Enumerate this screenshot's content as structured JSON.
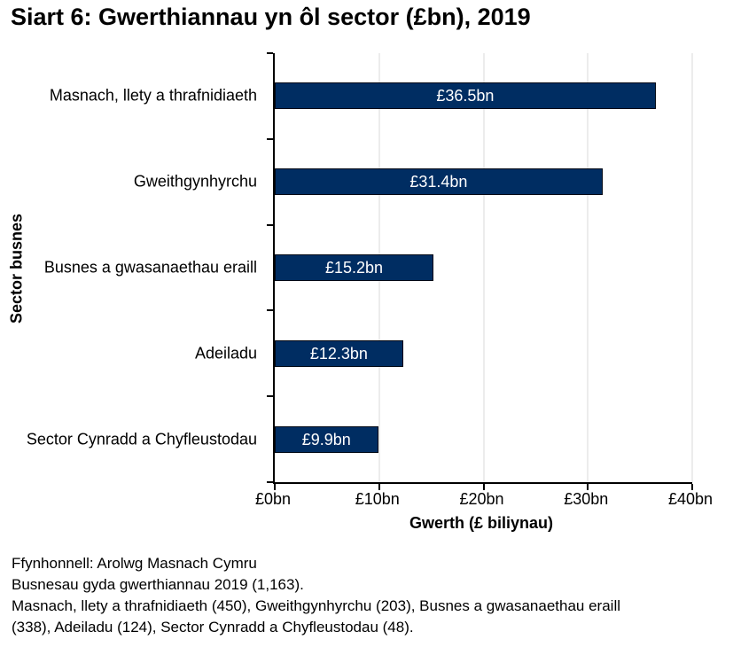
{
  "title": "Siart 6: Gwerthiannau yn ôl sector (£bn), 2019",
  "chart_data": {
    "type": "bar",
    "orientation": "horizontal",
    "title": "Siart 6: Gwerthiannau yn ôl sector (£bn), 2019",
    "categories": [
      "Masnach, llety a thrafnidiaeth",
      "Gweithgynhyrchu",
      "Busnes a gwasanaethau eraill",
      "Adeiladu",
      "Sector Cynradd a Chyfleustodau"
    ],
    "values": [
      36.5,
      31.4,
      15.2,
      12.3,
      9.9
    ],
    "bar_labels": [
      "£36.5bn",
      "£31.4bn",
      "£15.2bn",
      "£12.3bn",
      "£9.9bn"
    ],
    "xlabel": "Gwerth (£ biliynau)",
    "ylabel": "Sector busnes",
    "xlim": [
      0,
      40
    ],
    "xticks": [
      {
        "value": 0,
        "label": "£0bn"
      },
      {
        "value": 10,
        "label": "£10bn"
      },
      {
        "value": 20,
        "label": "£20bn"
      },
      {
        "value": 30,
        "label": "£30bn"
      },
      {
        "value": 40,
        "label": "£40bn"
      }
    ],
    "grid": true,
    "legend_position": "none",
    "colors": {
      "bar_fill": "#002d62",
      "bar_border": "#000814",
      "gridline": "#d9d9d9",
      "axis": "#000000",
      "bar_label_text": "#ffffff"
    }
  },
  "footer": {
    "lines": [
      "Ffynhonnell: Arolwg Masnach Cymru",
      "Busnesau gyda gwerthiannau 2019 (1,163).",
      "Masnach, llety a thrafnidiaeth (450), Gweithgynhyrchu (203), Busnes a gwasanaethau eraill (338), Adeiladu (124), Sector Cynradd a Chyfleustodau (48)."
    ]
  }
}
